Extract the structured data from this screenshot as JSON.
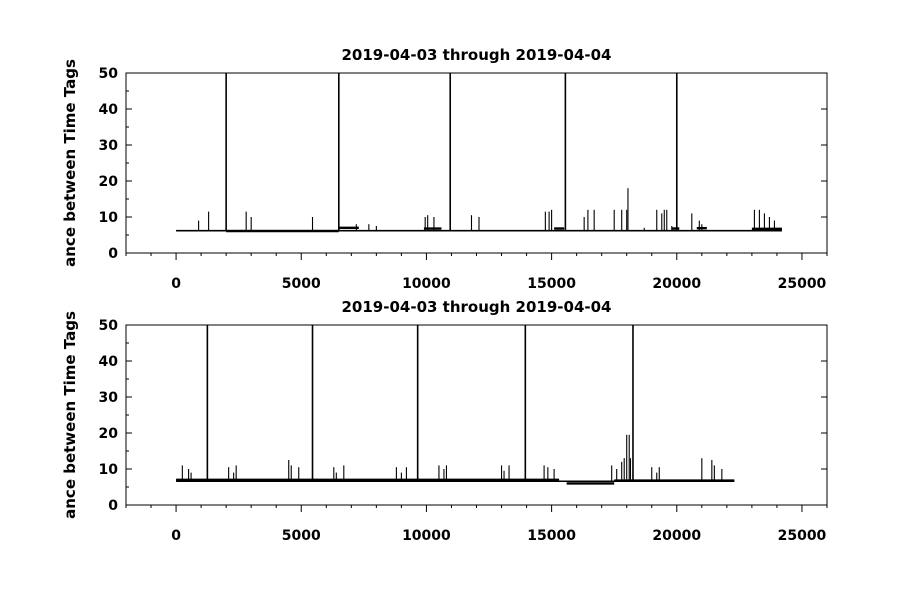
{
  "chart_data": [
    {
      "type": "line",
      "title": "2019-04-03 through 2019-04-04",
      "ylabel": "ance between Time Tags",
      "xlabel": "",
      "xlim": [
        -2000,
        26000
      ],
      "ylim": [
        0,
        50
      ],
      "xticks": [
        0,
        5000,
        10000,
        15000,
        20000,
        25000
      ],
      "yticks": [
        0,
        10,
        20,
        30,
        40,
        50
      ],
      "grid": false,
      "baseline": {
        "x_start": 0,
        "x_end": 24200,
        "value": 6.2
      },
      "segments": [
        {
          "x_start": 2000,
          "x_end": 6500,
          "value": 6.1
        },
        {
          "x_start": 6500,
          "x_end": 7300,
          "value": 7.0
        },
        {
          "x_start": 9900,
          "x_end": 10600,
          "value": 6.8
        },
        {
          "x_start": 15100,
          "x_end": 15500,
          "value": 6.8
        },
        {
          "x_start": 19800,
          "x_end": 20100,
          "value": 6.8
        },
        {
          "x_start": 20800,
          "x_end": 21200,
          "value": 6.9
        },
        {
          "x_start": 23000,
          "x_end": 24200,
          "value": 6.7
        }
      ],
      "series": [
        {
          "x": [
            2000,
            6500,
            10950,
            15550,
            20000,
            900,
            1300,
            2800,
            3000,
            5450,
            7200,
            7700,
            8000,
            9950,
            10050,
            10300,
            11800,
            12100,
            14750,
            14900,
            15000,
            16300,
            16450,
            16700,
            17500,
            17800,
            18000,
            18050,
            18700,
            19200,
            19400,
            19500,
            19600,
            19800,
            20600,
            20900,
            21000,
            23100,
            23300,
            23500,
            23700,
            23900
          ],
          "y": [
            50,
            50,
            50,
            50,
            50,
            9,
            11.5,
            11.5,
            10,
            10,
            8,
            8,
            7.5,
            10,
            10.5,
            10,
            10.5,
            10,
            11.5,
            11.5,
            12,
            10,
            12,
            12,
            12,
            12,
            12,
            18,
            7,
            12,
            11,
            12,
            12,
            7.5,
            11,
            9,
            8,
            12,
            12,
            11,
            10,
            9
          ]
        }
      ]
    },
    {
      "type": "line",
      "title": "2019-04-03 through 2019-04-04",
      "ylabel": "ance between Time Tags",
      "xlabel": "",
      "xlim": [
        -2000,
        26000
      ],
      "ylim": [
        0,
        50
      ],
      "xticks": [
        0,
        5000,
        10000,
        15000,
        20000,
        25000
      ],
      "yticks": [
        0,
        10,
        20,
        30,
        40,
        50
      ],
      "grid": false,
      "baseline": {
        "x_start": 0,
        "x_end": 22300,
        "value": 6.6
      },
      "segments": [
        {
          "x_start": 0,
          "x_end": 15300,
          "value": 7.0
        },
        {
          "x_start": 15600,
          "x_end": 17500,
          "value": 6.0
        },
        {
          "x_start": 17500,
          "x_end": 22300,
          "value": 6.8
        }
      ],
      "series": [
        {
          "x": [
            1250,
            5450,
            9650,
            13950,
            18250,
            250,
            500,
            600,
            2100,
            2300,
            2400,
            4500,
            4600,
            4900,
            6300,
            6400,
            6700,
            8800,
            9000,
            9200,
            10500,
            10700,
            10800,
            13000,
            13100,
            13300,
            14700,
            14850,
            15100,
            17400,
            17600,
            17800,
            17900,
            18000,
            18100,
            18150,
            19000,
            19200,
            19300,
            21000,
            21400,
            21500,
            21800
          ],
          "y": [
            50,
            50,
            50,
            50,
            50,
            11,
            10,
            9,
            10.5,
            9,
            11,
            12.5,
            11,
            10.5,
            10.5,
            9,
            11,
            10.5,
            9,
            10.5,
            11,
            10,
            11,
            11,
            9.5,
            11,
            11,
            10.5,
            10,
            11,
            10,
            12,
            13,
            19.5,
            19.5,
            13,
            10.5,
            9,
            10.5,
            13,
            12.5,
            11,
            10
          ]
        }
      ]
    }
  ]
}
